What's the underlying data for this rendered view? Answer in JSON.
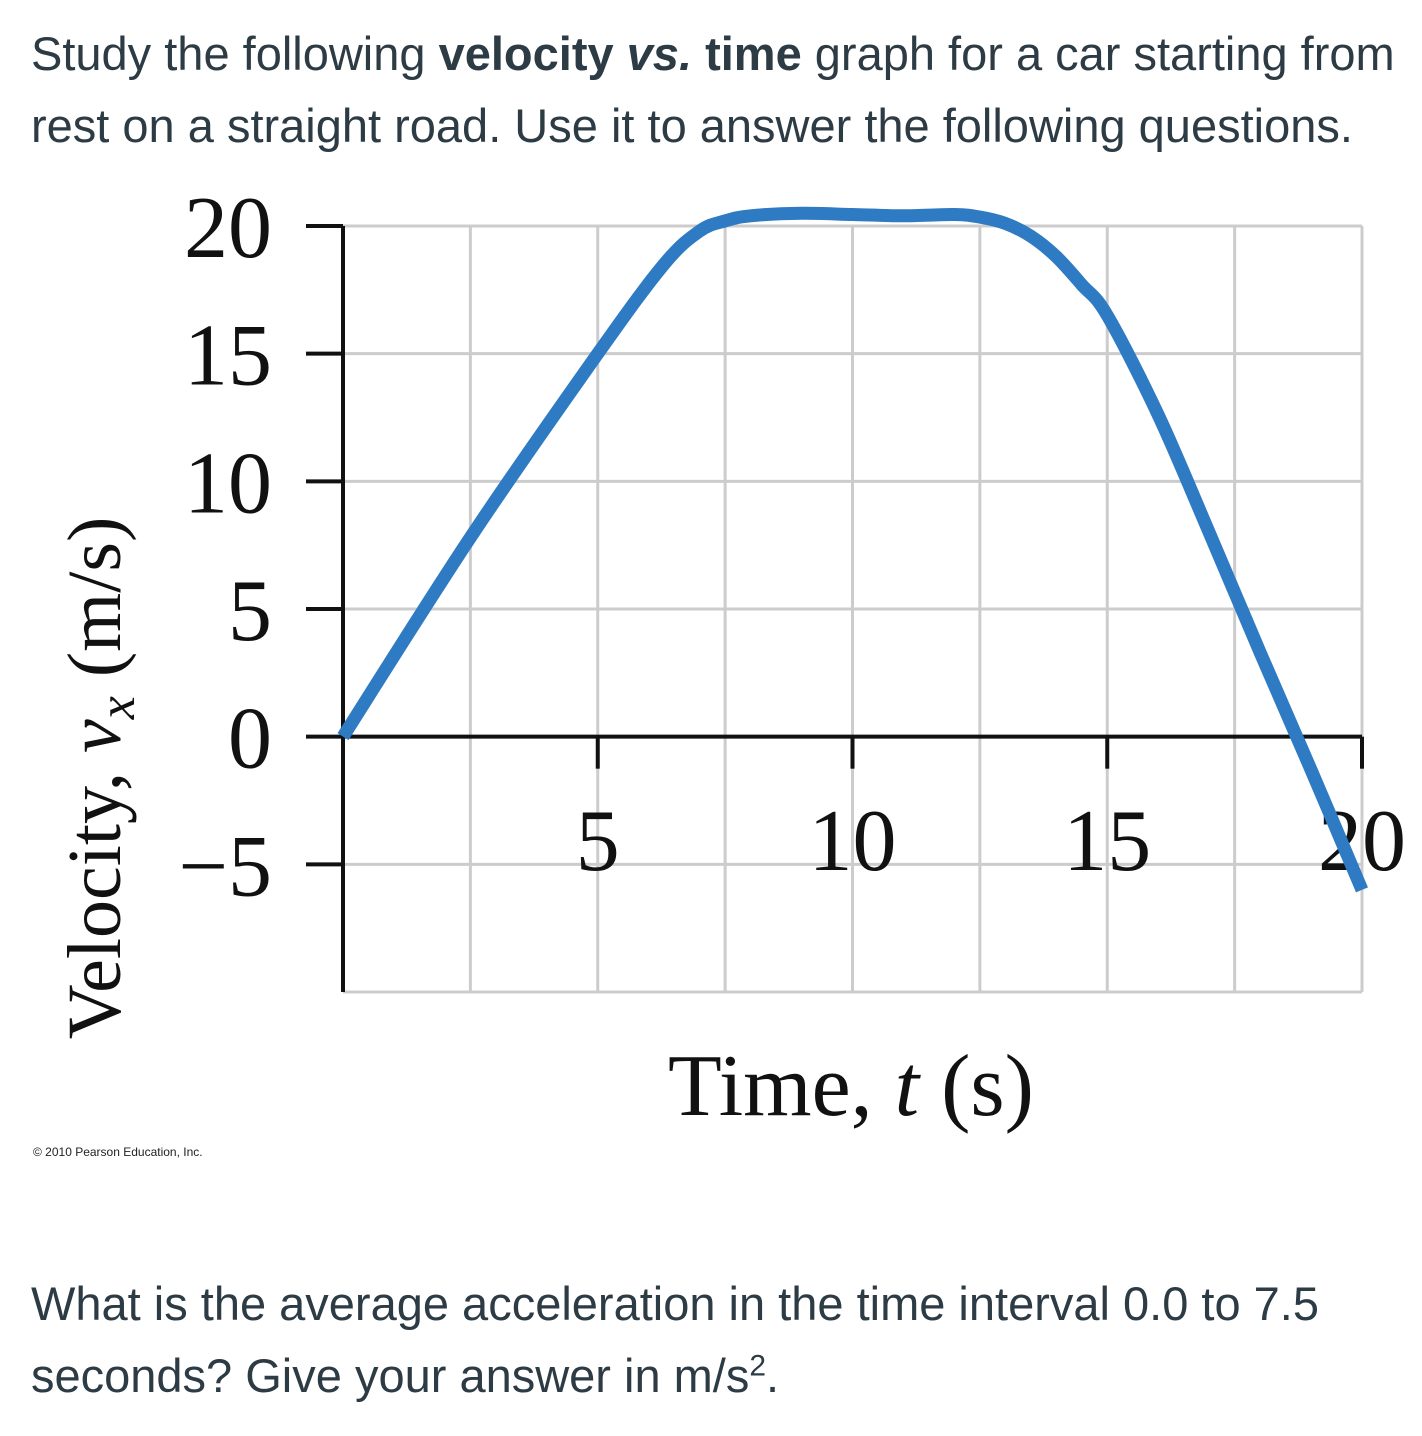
{
  "prompt": {
    "intro": "Study the following ",
    "bold_phrase_a": "velocity ",
    "bold_vs": "vs.",
    "bold_phrase_b": " time",
    "rest": " graph for a car starting from rest on a straight road. Use it to answer the following questions."
  },
  "question": {
    "text": "What is the average acceleration in the time interval 0.0 to 7.5 seconds? Give your answer in m/s",
    "exponent": "2",
    "suffix": "."
  },
  "copyright": "© 2010 Pearson Education, Inc.",
  "chart_data": {
    "type": "line",
    "xlabel_prefix": "Time, ",
    "xlabel_var": "t",
    "xlabel_unit": " (s)",
    "ylabel_prefix": "Velocity, ",
    "ylabel_var": "v",
    "ylabel_sub": "x",
    "ylabel_unit": " (m/s)",
    "xlim": [
      0,
      20
    ],
    "ylim": [
      -10,
      20
    ],
    "x_ticks": [
      5,
      10,
      15,
      20
    ],
    "y_ticks": [
      20,
      15,
      10,
      5,
      0,
      -5
    ],
    "x_tick_labels": [
      "5",
      "10",
      "15",
      "20"
    ],
    "y_tick_labels": [
      "20",
      "15",
      "10",
      "5",
      "0",
      "−5"
    ],
    "x_grid": [
      2.5,
      5,
      7.5,
      10,
      12.5,
      15,
      17.5,
      20
    ],
    "y_grid": [
      -10,
      -5,
      0,
      5,
      10,
      15,
      20
    ],
    "grid": true,
    "line_color": "#2e7bc4",
    "grid_color": "#cccccc",
    "series": [
      {
        "x": [
          0,
          2.5,
          5,
          6.3,
          7.0,
          7.5,
          8.0,
          9.0,
          10.0,
          11.0,
          12.0,
          12.5,
          13.0,
          13.5,
          14.0,
          14.5,
          15.0,
          16.0,
          17.0,
          18.0,
          19.0,
          20.0
        ],
        "y": [
          0,
          7.8,
          15.0,
          18.5,
          19.8,
          20.2,
          20.4,
          20.5,
          20.45,
          20.4,
          20.45,
          20.35,
          20.1,
          19.6,
          18.8,
          17.7,
          16.5,
          12.6,
          8.0,
          3.3,
          -1.3,
          -6.0
        ]
      }
    ]
  }
}
